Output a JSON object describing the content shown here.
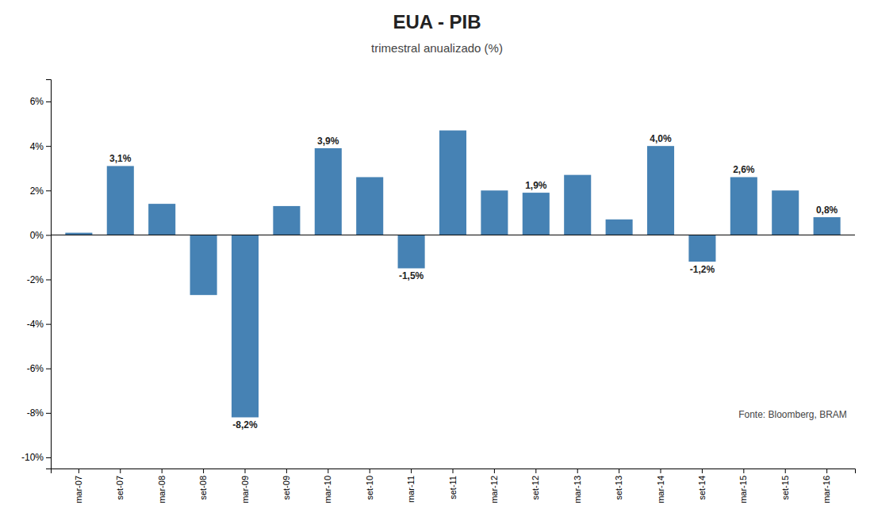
{
  "chart_data": {
    "type": "bar",
    "title": "EUA - PIB",
    "subtitle": "trimestral anualizado (%)",
    "source": "Fonte: Bloomberg, BRAM",
    "categories": [
      "mar-07",
      "set-07",
      "mar-08",
      "set-08",
      "mar-09",
      "set-09",
      "mar-10",
      "set-10",
      "mar-11",
      "set-11",
      "mar-12",
      "set-12",
      "mar-13",
      "set-13",
      "mar-14",
      "set-14",
      "mar-15",
      "set-15",
      "mar-16"
    ],
    "values": [
      0.1,
      3.1,
      1.4,
      -2.7,
      -8.2,
      1.3,
      3.9,
      2.6,
      -1.5,
      4.7,
      2.0,
      1.9,
      2.7,
      0.7,
      4.0,
      -1.2,
      2.6,
      2.0,
      0.8
    ],
    "value_labels": [
      null,
      "3,1%",
      null,
      null,
      "-8,2%",
      null,
      "3,9%",
      null,
      "-1,5%",
      null,
      null,
      "1,9%",
      null,
      null,
      "4,0%",
      "-1,2%",
      "2,6%",
      null,
      "0,8%"
    ],
    "ylim": [
      -10.5,
      7
    ],
    "yticks": [
      {
        "value": -10,
        "label": "-10%"
      },
      {
        "value": -8,
        "label": "-8%"
      },
      {
        "value": -6,
        "label": "-6%"
      },
      {
        "value": -4,
        "label": "-4%"
      },
      {
        "value": -2,
        "label": "-2%"
      },
      {
        "value": 0,
        "label": "0%"
      },
      {
        "value": 2,
        "label": "2%"
      },
      {
        "value": 4,
        "label": "4%"
      },
      {
        "value": 6,
        "label": "6%"
      }
    ],
    "grid": false
  }
}
